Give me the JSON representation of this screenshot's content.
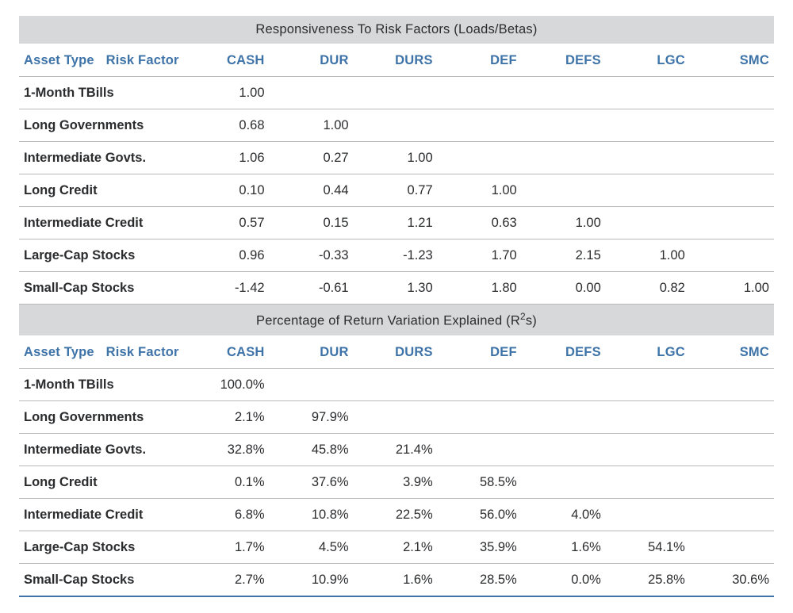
{
  "colors": {
    "title_bg": "#d7d8da",
    "header_text": "#3e73a8",
    "body_text": "#2b2c2e",
    "row_border": "#b8bbbe",
    "bottom_border": "#3e73a8",
    "background": "#ffffff"
  },
  "typography": {
    "base_font_size_pt": 12,
    "header_weight": 600,
    "row_label_weight": 600
  },
  "headers": {
    "asset_type": "Asset Type",
    "risk_factor": "Risk Factor",
    "factors": [
      "CASH",
      "DUR",
      "DURS",
      "DEF",
      "DEFS",
      "LGC",
      "SMC"
    ]
  },
  "section1": {
    "title": "Responsiveness To Risk Factors (Loads/Betas)",
    "rows": [
      {
        "label": "1-Month TBills",
        "vals": [
          "1.00",
          "",
          "",
          "",
          "",
          "",
          ""
        ]
      },
      {
        "label": "Long Governments",
        "vals": [
          "0.68",
          "1.00",
          "",
          "",
          "",
          "",
          ""
        ]
      },
      {
        "label": "Intermediate Govts.",
        "vals": [
          "1.06",
          "0.27",
          "1.00",
          "",
          "",
          "",
          ""
        ]
      },
      {
        "label": "Long Credit",
        "vals": [
          "0.10",
          "0.44",
          "0.77",
          "1.00",
          "",
          "",
          ""
        ]
      },
      {
        "label": "Intermediate Credit",
        "vals": [
          "0.57",
          "0.15",
          "1.21",
          "0.63",
          "1.00",
          "",
          ""
        ]
      },
      {
        "label": "Large-Cap Stocks",
        "vals": [
          "0.96",
          "-0.33",
          "-1.23",
          "1.70",
          "2.15",
          "1.00",
          ""
        ]
      },
      {
        "label": "Small-Cap Stocks",
        "vals": [
          "-1.42",
          "-0.61",
          "1.30",
          "1.80",
          "0.00",
          "0.82",
          "1.00"
        ]
      }
    ]
  },
  "section2": {
    "title_pre": "Percentage of Return Variation Explained (R",
    "title_sup": "2",
    "title_post": "s)",
    "rows": [
      {
        "label": "1-Month TBills",
        "vals": [
          "100.0%",
          "",
          "",
          "",
          "",
          "",
          ""
        ]
      },
      {
        "label": "Long Governments",
        "vals": [
          "2.1%",
          "97.9%",
          "",
          "",
          "",
          "",
          ""
        ]
      },
      {
        "label": "Intermediate Govts.",
        "vals": [
          "32.8%",
          "45.8%",
          "21.4%",
          "",
          "",
          "",
          ""
        ]
      },
      {
        "label": "Long Credit",
        "vals": [
          "0.1%",
          "37.6%",
          "3.9%",
          "58.5%",
          "",
          "",
          ""
        ]
      },
      {
        "label": "Intermediate Credit",
        "vals": [
          "6.8%",
          "10.8%",
          "22.5%",
          "56.0%",
          "4.0%",
          "",
          ""
        ]
      },
      {
        "label": "Large-Cap Stocks",
        "vals": [
          "1.7%",
          "4.5%",
          "2.1%",
          "35.9%",
          "1.6%",
          "54.1%",
          ""
        ]
      },
      {
        "label": "Small-Cap Stocks",
        "vals": [
          "2.7%",
          "10.9%",
          "1.6%",
          "28.5%",
          "0.0%",
          "25.8%",
          "30.6%"
        ]
      }
    ]
  }
}
